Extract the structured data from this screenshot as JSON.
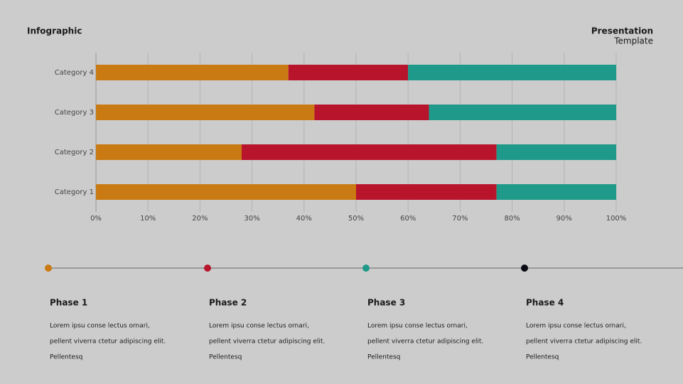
{
  "header": {
    "left": "Infographic",
    "right_title": "Presentation",
    "right_subtitle": "Template"
  },
  "chart_data": {
    "type": "stacked_barh",
    "categories": [
      "Category 1",
      "Category 2",
      "Category 3",
      "Category 4"
    ],
    "series": [
      {
        "color": "#c97a12",
        "values": [
          50,
          28,
          42,
          37
        ]
      },
      {
        "color": "#b8152d",
        "values": [
          27,
          49,
          22,
          23
        ]
      },
      {
        "color": "#1f9a8a",
        "values": [
          23,
          23,
          36,
          40
        ]
      }
    ],
    "xlim": [
      0,
      100
    ],
    "xticks": [
      {
        "value": 0,
        "label": "0%"
      },
      {
        "value": 10,
        "label": "10%"
      },
      {
        "value": 20,
        "label": "20%"
      },
      {
        "value": 30,
        "label": "30%"
      },
      {
        "value": 40,
        "label": "40%"
      },
      {
        "value": 50,
        "label": "50%"
      },
      {
        "value": 60,
        "label": "60%"
      },
      {
        "value": 70,
        "label": "70%"
      },
      {
        "value": 80,
        "label": "80%"
      },
      {
        "value": 90,
        "label": "90%"
      },
      {
        "value": 100,
        "label": "100%"
      }
    ],
    "grid": true
  },
  "phases": [
    {
      "title": "Phase 1",
      "color": "#c97a12",
      "lines": [
        "Lorem ipsu conse lectus ornari,",
        "pellent viverra ctetur adipiscing elit.",
        "Pellentesq"
      ]
    },
    {
      "title": "Phase 2",
      "color": "#b8152d",
      "lines": [
        "Lorem ipsu conse lectus ornari,",
        "pellent viverra ctetur adipiscing elit.",
        "Pellentesq"
      ]
    },
    {
      "title": "Phase 3",
      "color": "#1f9a8a",
      "lines": [
        "Lorem ipsu conse lectus ornari,",
        "pellent viverra ctetur adipiscing elit.",
        "Pellentesq"
      ]
    },
    {
      "title": "Phase 4",
      "color": "#0b0b14",
      "lines": [
        "Lorem ipsu conse lectus ornari,",
        "pellent viverra ctetur adipiscing elit.",
        "Pellentesq"
      ]
    }
  ]
}
